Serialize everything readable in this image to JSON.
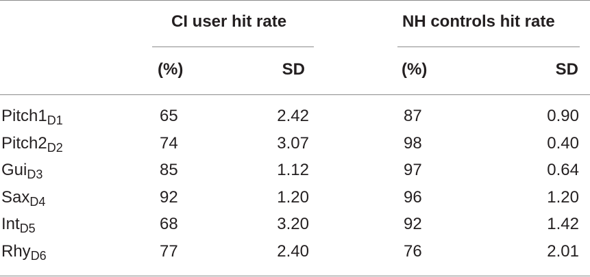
{
  "table": {
    "group_headers": {
      "ci": "CI user hit rate",
      "nh": "NH controls hit rate"
    },
    "unit_headers": {
      "ci_pct": "(%)",
      "ci_sd": "SD",
      "nh_pct": "(%)",
      "nh_sd": "SD"
    },
    "rows": [
      {
        "label": "Pitch1",
        "sub": "D1",
        "ci_pct": "65",
        "ci_sd": "2.42",
        "nh_pct": "87",
        "nh_sd": "0.90"
      },
      {
        "label": "Pitch2",
        "sub": "D2",
        "ci_pct": "74",
        "ci_sd": "3.07",
        "nh_pct": "98",
        "nh_sd": "0.40"
      },
      {
        "label": "Gui",
        "sub": "D3",
        "ci_pct": "85",
        "ci_sd": "1.12",
        "nh_pct": "97",
        "nh_sd": "0.64"
      },
      {
        "label": "Sax",
        "sub": "D4",
        "ci_pct": "92",
        "ci_sd": "1.20",
        "nh_pct": "96",
        "nh_sd": "1.20"
      },
      {
        "label": "Int",
        "sub": "D5",
        "ci_pct": "68",
        "ci_sd": "3.20",
        "nh_pct": "92",
        "nh_sd": "1.42"
      },
      {
        "label": "Rhy",
        "sub": "D6",
        "ci_pct": "77",
        "ci_sd": "2.40",
        "nh_pct": "76",
        "nh_sd": "2.01"
      }
    ]
  }
}
